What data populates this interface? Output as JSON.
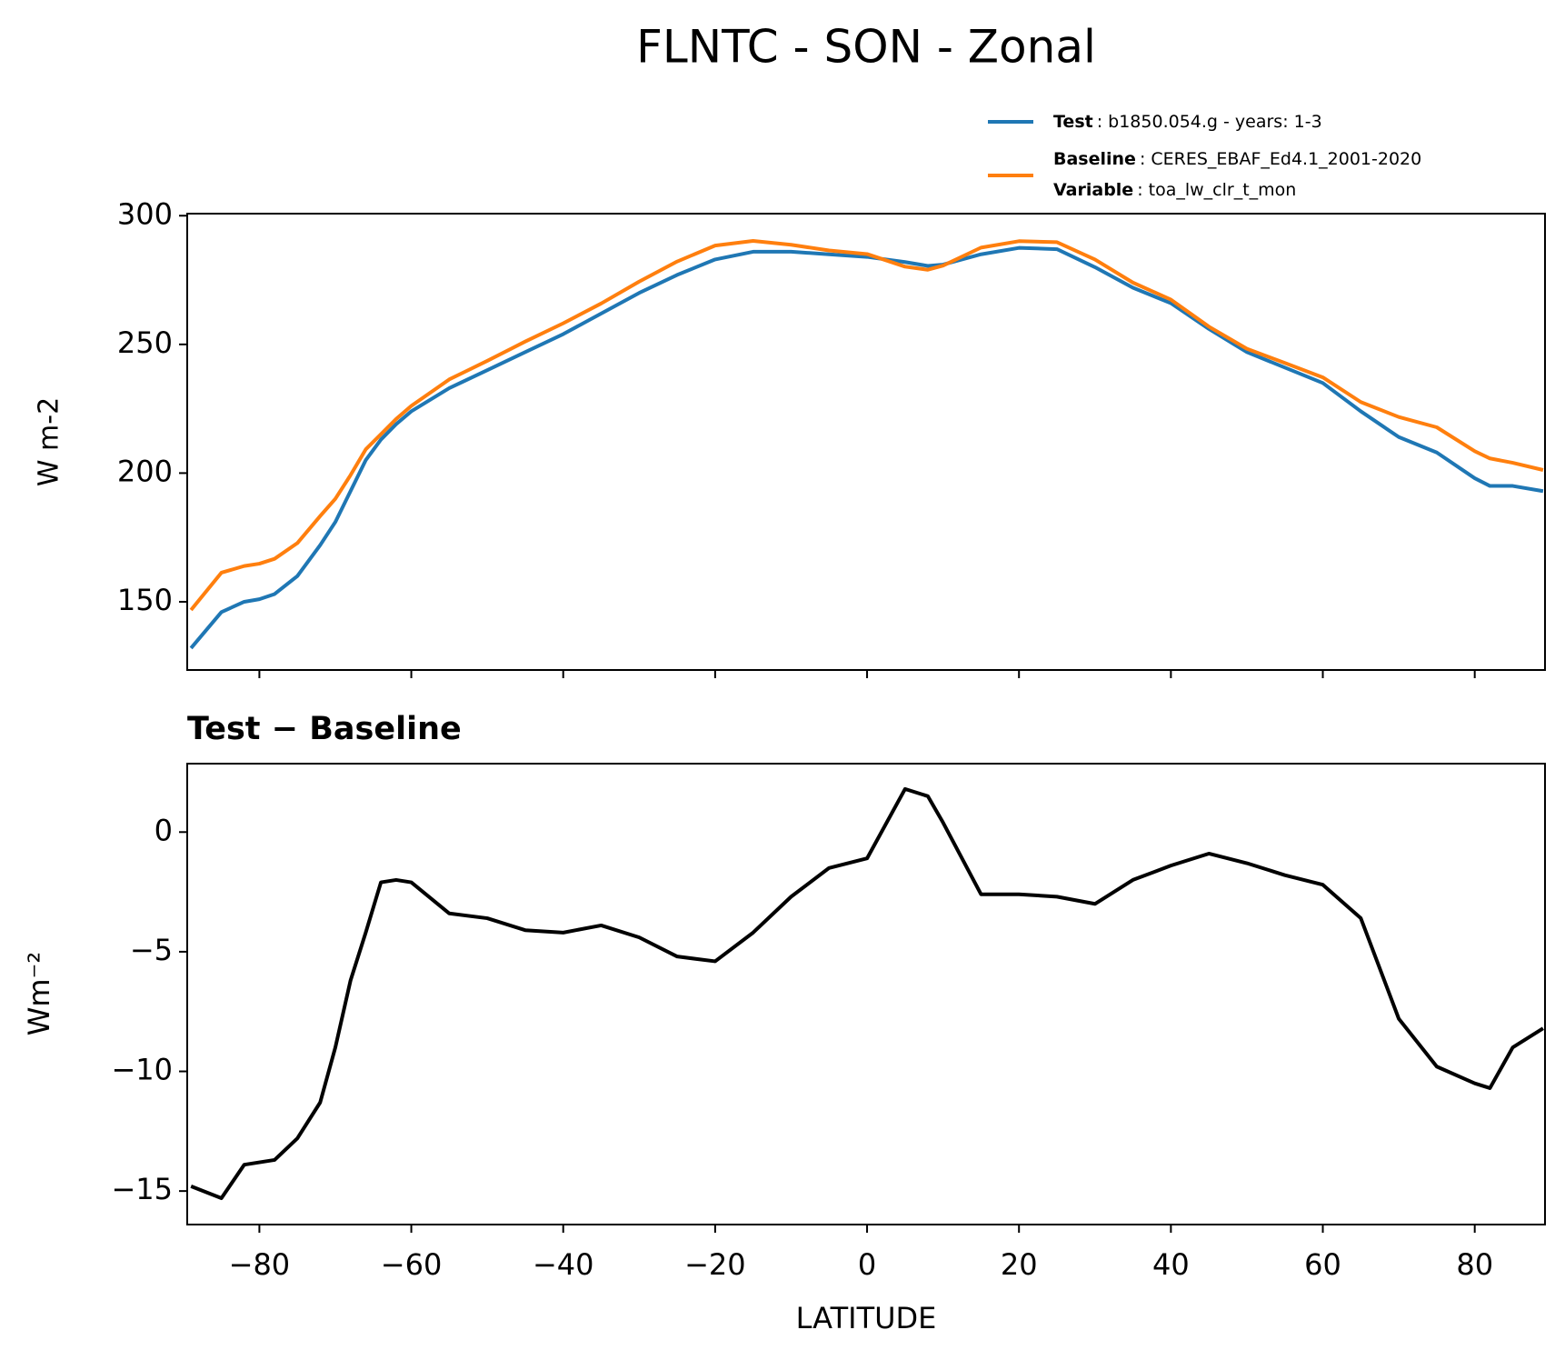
{
  "chart_data": [
    {
      "type": "line",
      "suptitle": "FLNTC - SON - Zonal",
      "ylabel": "W m-2",
      "x": [
        -89,
        -85,
        -82,
        -80,
        -78,
        -75,
        -72,
        -70,
        -68,
        -66,
        -64,
        -62,
        -60,
        -55,
        -50,
        -45,
        -40,
        -35,
        -30,
        -25,
        -20,
        -15,
        -10,
        -5,
        0,
        5,
        8,
        10,
        15,
        20,
        25,
        30,
        35,
        40,
        45,
        50,
        55,
        60,
        65,
        70,
        75,
        80,
        82,
        85,
        89
      ],
      "series": [
        {
          "name": "Test",
          "legend_detail": ": b1850.054.g - years: 1-3",
          "color": "#1f77b4",
          "values": [
            132,
            146,
            150,
            151,
            153,
            160,
            172,
            181,
            193,
            205,
            213,
            219,
            224,
            233,
            240,
            247,
            254,
            262,
            270,
            277,
            283,
            286,
            286,
            285,
            284,
            282,
            280.5,
            281,
            285,
            287.5,
            287,
            280,
            272,
            266,
            256,
            247,
            241,
            235,
            224,
            214,
            208,
            198,
            195,
            195,
            193
          ]
        },
        {
          "name": "Baseline",
          "legend_detail": ": CERES_EBAF_Ed4.1_2001-2020",
          "color": "#ff7f0e",
          "values": [
            146.8,
            161.3,
            163.9,
            164.8,
            166.7,
            172.8,
            183.3,
            190,
            199.2,
            209.2,
            215.1,
            221,
            226.1,
            236.4,
            243.6,
            251.1,
            258.2,
            265.9,
            274.4,
            282.2,
            288.4,
            290.2,
            288.7,
            286.5,
            285.1,
            280.2,
            279,
            280.6,
            287.6,
            290.1,
            289.7,
            283,
            274,
            267.4,
            256.9,
            248.3,
            242.8,
            237.2,
            227.6,
            221.8,
            217.8,
            208.5,
            205.7,
            204,
            201.2
          ]
        }
      ],
      "legend_extra": {
        "name": "Variable",
        "detail": ": toa_lw_clr_t_mon"
      },
      "xlim": [
        -89.5,
        89.25
      ],
      "xticks": [
        -80,
        -60,
        -40,
        -20,
        0,
        20,
        40,
        60,
        80
      ],
      "ylim": [
        123.5,
        300.8
      ],
      "yticks": [
        150,
        200,
        250,
        300
      ]
    },
    {
      "type": "line",
      "title": "Test − Baseline",
      "ylabel": "Wm⁻²",
      "xlabel": "LATITUDE",
      "x": [
        -89,
        -85,
        -82,
        -80,
        -78,
        -75,
        -72,
        -70,
        -68,
        -66,
        -64,
        -62,
        -60,
        -55,
        -50,
        -45,
        -40,
        -35,
        -30,
        -25,
        -20,
        -15,
        -10,
        -5,
        0,
        5,
        8,
        10,
        15,
        20,
        25,
        30,
        35,
        40,
        45,
        50,
        55,
        60,
        65,
        70,
        75,
        80,
        82,
        85,
        89
      ],
      "series": [
        {
          "color": "#000000",
          "values": [
            -14.8,
            -15.3,
            -13.9,
            -13.8,
            -13.7,
            -12.8,
            -11.3,
            -9.0,
            -6.2,
            -4.2,
            -2.1,
            -2.0,
            -2.1,
            -3.4,
            -3.6,
            -4.1,
            -4.2,
            -3.9,
            -4.4,
            -5.2,
            -5.4,
            -4.2,
            -2.7,
            -1.5,
            -1.1,
            1.8,
            1.5,
            0.4,
            -2.6,
            -2.6,
            -2.7,
            -3.0,
            -2.0,
            -1.4,
            -0.9,
            -1.3,
            -1.8,
            -2.2,
            -3.6,
            -7.8,
            -9.8,
            -10.5,
            -10.7,
            -9.0,
            -8.2
          ]
        }
      ],
      "xlim": [
        -89.5,
        89.25
      ],
      "xticks": [
        {
          "value": -80,
          "label": "−80"
        },
        {
          "value": -60,
          "label": "−60"
        },
        {
          "value": -40,
          "label": "−40"
        },
        {
          "value": -20,
          "label": "−20"
        },
        0,
        20,
        40,
        60,
        80
      ],
      "ylim": [
        -16.4,
        2.86
      ],
      "yticks": [
        {
          "value": -15,
          "label": "−15"
        },
        {
          "value": -10,
          "label": "−10"
        },
        {
          "value": -5,
          "label": "−5"
        },
        0
      ]
    }
  ]
}
